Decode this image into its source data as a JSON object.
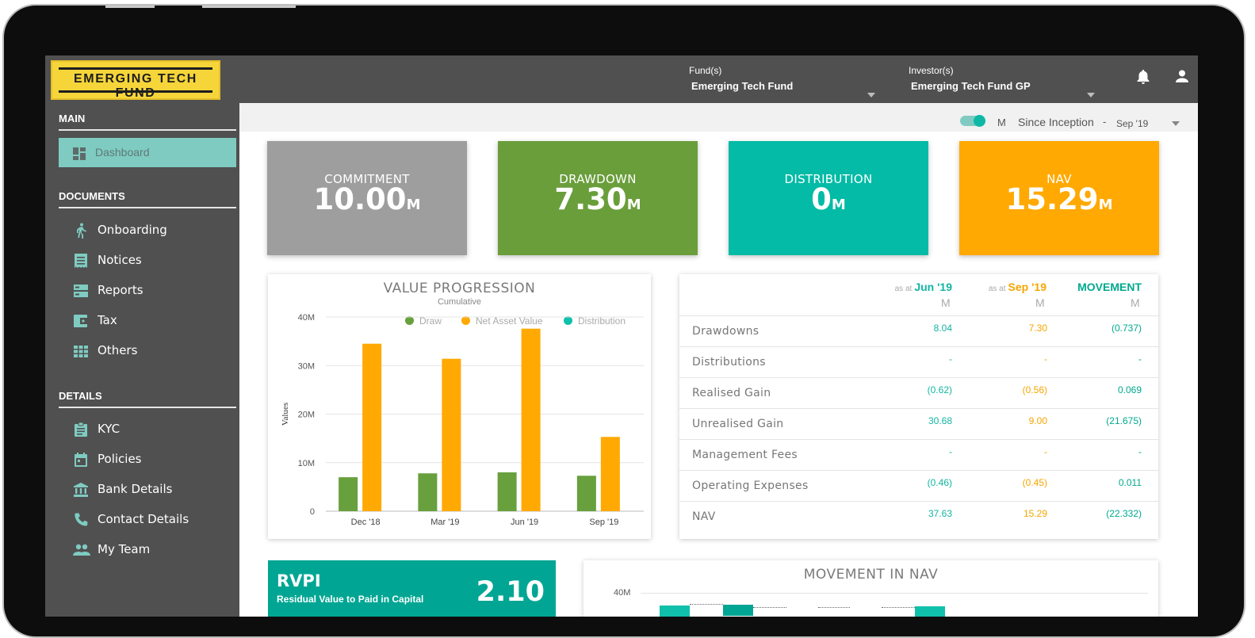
{
  "logo": {
    "text": "EMERGING TECH FUND"
  },
  "header": {
    "fund": {
      "caption": "Fund(s)",
      "value": "Emerging Tech Fund"
    },
    "investor": {
      "caption": "Investor(s)",
      "value": "Emerging Tech Fund GP"
    },
    "icons": [
      "bell-icon",
      "user-icon"
    ]
  },
  "sidebar": {
    "main_title": "MAIN",
    "dashboard": "Dashboard",
    "documents_title": "DOCUMENTS",
    "documents": [
      {
        "label": "Onboarding",
        "icon": "person-walking-icon"
      },
      {
        "label": "Notices",
        "icon": "receipt-icon"
      },
      {
        "label": "Reports",
        "icon": "storage-icon"
      },
      {
        "label": "Tax",
        "icon": "wallet-icon"
      },
      {
        "label": "Others",
        "icon": "grid-icon"
      }
    ],
    "details_title": "DETAILS",
    "details": [
      {
        "label": "KYC",
        "icon": "clipboard-icon"
      },
      {
        "label": "Policies",
        "icon": "calendar-icon"
      },
      {
        "label": "Bank Details",
        "icon": "bank-icon"
      },
      {
        "label": "Contact Details",
        "icon": "phone-icon"
      },
      {
        "label": "My Team",
        "icon": "people-icon"
      }
    ]
  },
  "filter": {
    "toggle_unit": "M",
    "period": "Since Inception",
    "separator": "-",
    "date": "Sep '19",
    "toggle_on": true
  },
  "cards": [
    {
      "title": "COMMITMENT",
      "value": "10.00",
      "unit": "M",
      "color": "#9e9e9e"
    },
    {
      "title": "DRAWDOWN",
      "value": "7.30",
      "unit": "M",
      "color": "#6a9e3b"
    },
    {
      "title": "DISTRIBUTION",
      "value": "0",
      "unit": "M",
      "color": "#03bba6"
    },
    {
      "title": "NAV",
      "value": "15.29",
      "unit": "M",
      "color": "#ffa902"
    }
  ],
  "value_progression": {
    "title": "VALUE PROGRESSION",
    "subtitle": "Cumulative",
    "legend": [
      "Draw",
      "Net Asset Value",
      "Distribution"
    ],
    "ylabel": "Values",
    "yticks": [
      "40M",
      "30M",
      "20M",
      "10M",
      "0"
    ]
  },
  "chart_data": {
    "type": "bar",
    "title": "VALUE PROGRESSION",
    "subtitle": "Cumulative",
    "categories": [
      "Dec '18",
      "Mar '19",
      "Jun '19",
      "Sep '19"
    ],
    "series": [
      {
        "name": "Draw",
        "values": [
          7.0,
          7.8,
          8.0,
          7.3
        ],
        "color": "#67a03d"
      },
      {
        "name": "Net Asset Value",
        "values": [
          34.5,
          31.4,
          37.6,
          15.3
        ],
        "color": "#ffa902"
      },
      {
        "name": "Distribution",
        "values": [
          0,
          0,
          0,
          0
        ],
        "color": "#10c0ab"
      }
    ],
    "ylabel": "Values",
    "ylim": [
      0,
      40
    ],
    "grid": true,
    "legend": "top-right"
  },
  "table": {
    "headers": [
      {
        "prefix": "as at",
        "label": "Jun '19",
        "unit": "M",
        "color": "#12b5a2"
      },
      {
        "prefix": "as at",
        "label": "Sep '19",
        "unit": "M",
        "color": "#f6a600"
      },
      {
        "prefix": "",
        "label": "MOVEMENT",
        "unit": "M",
        "color": "#00a98f"
      }
    ],
    "rows": [
      {
        "label": "Drawdowns",
        "jun": "8.04",
        "sep": "7.30",
        "mov": "(0.737)"
      },
      {
        "label": "Distributions",
        "jun": "-",
        "sep": "-",
        "mov": "-"
      },
      {
        "label": "Realised Gain",
        "jun": "(0.62)",
        "sep": "(0.56)",
        "mov": "0.069"
      },
      {
        "label": "Unrealised Gain",
        "jun": "30.68",
        "sep": "9.00",
        "mov": "(21.675)"
      },
      {
        "label": "Management Fees",
        "jun": "-",
        "sep": "-",
        "mov": "-"
      },
      {
        "label": "Operating Expenses",
        "jun": "(0.46)",
        "sep": "(0.45)",
        "mov": "0.011"
      },
      {
        "label": "NAV",
        "jun": "37.63",
        "sep": "15.29",
        "mov": "(22.332)"
      }
    ]
  },
  "rvpi": {
    "title": "RVPI",
    "subtitle": "Residual Value to Paid in Capital",
    "value": "2.10"
  },
  "movement_nav": {
    "title": "MOVEMENT IN NAV",
    "ytick": "40M"
  }
}
